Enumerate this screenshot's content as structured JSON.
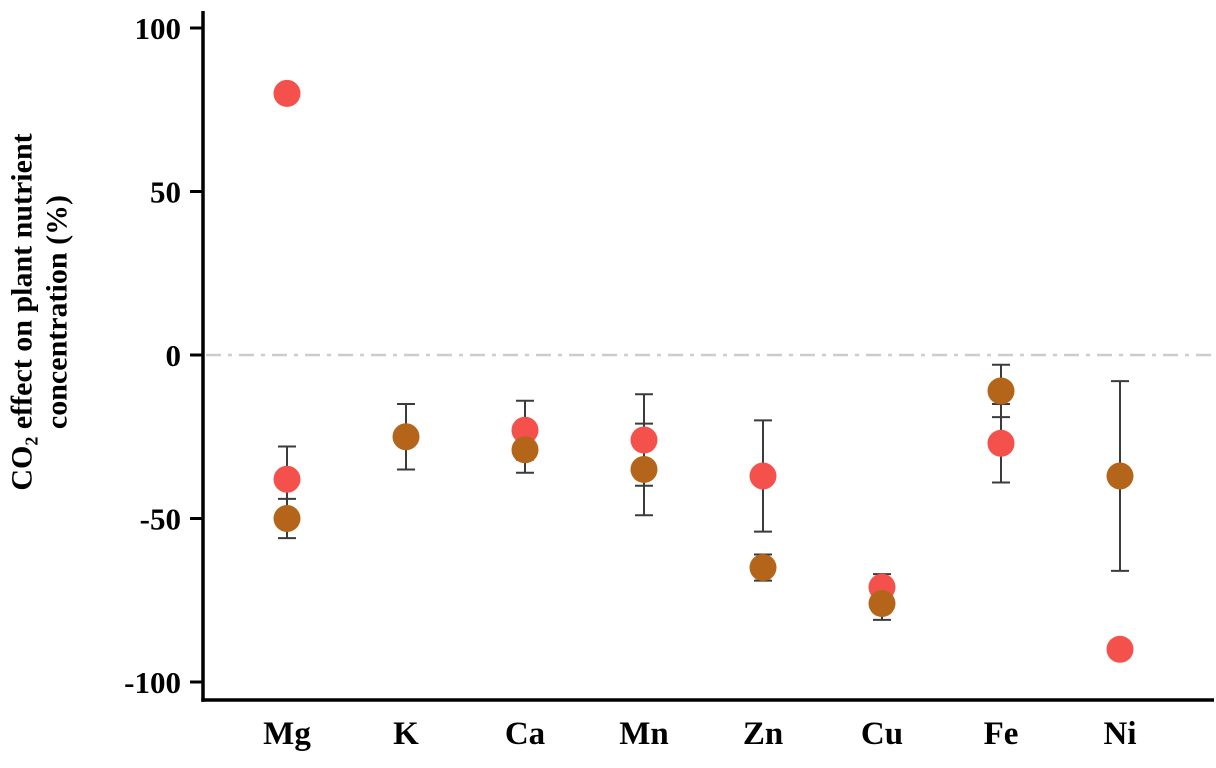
{
  "figure": {
    "ylabel_line1": "CO₂ effect on plant nutrient",
    "ylabel_line2": "concentration (%)"
  },
  "chart_data": {
    "type": "scatter",
    "title": "",
    "xlabel": "",
    "ylabel": "CO₂ effect on plant nutrient concentration (%)",
    "categories": [
      "Mg",
      "K",
      "Ca",
      "Mn",
      "Zn",
      "Cu",
      "Fe",
      "Ni"
    ],
    "ylim": [
      -100,
      100
    ],
    "yticks": [
      100,
      50,
      0,
      -50,
      -100
    ],
    "ytick_labels": [
      "100",
      "50",
      "0",
      "-50",
      "-100"
    ],
    "grid": false,
    "legend": "none",
    "zero_reference_line": {
      "value": 0,
      "style": "dash-dot",
      "color": "#cccccc"
    },
    "colors": {
      "red_series": "#f4514c",
      "brown_series": "#b5651a",
      "error_bar": "#3b3b3b",
      "axis": "#000000",
      "zero_line": "#cccccc"
    },
    "series": [
      {
        "name": "red",
        "color": "#f4514c",
        "points": [
          {
            "category": "Mg",
            "value": 80,
            "err": 0
          },
          {
            "category": "Mg",
            "value": -38,
            "err": 10
          },
          {
            "category": "Ca",
            "value": -23,
            "err": 9
          },
          {
            "category": "Mn",
            "value": -26,
            "err": 14
          },
          {
            "category": "Zn",
            "value": -37,
            "err": 17
          },
          {
            "category": "Cu",
            "value": -71,
            "err": 4
          },
          {
            "category": "Fe",
            "value": -27,
            "err": 12
          },
          {
            "category": "Ni",
            "value": -90,
            "err": 0
          }
        ]
      },
      {
        "name": "brown",
        "color": "#b5651a",
        "points": [
          {
            "category": "Mg",
            "value": -50,
            "err": 6
          },
          {
            "category": "K",
            "value": -25,
            "err": 10
          },
          {
            "category": "Ca",
            "value": -29,
            "err": 7
          },
          {
            "category": "Mn",
            "value": -35,
            "err": 14
          },
          {
            "category": "Zn",
            "value": -65,
            "err": 4
          },
          {
            "category": "Cu",
            "value": -76,
            "err": 5
          },
          {
            "category": "Fe",
            "value": -11,
            "err": 8
          },
          {
            "category": "Ni",
            "value": -37,
            "err": 29
          }
        ]
      }
    ]
  }
}
